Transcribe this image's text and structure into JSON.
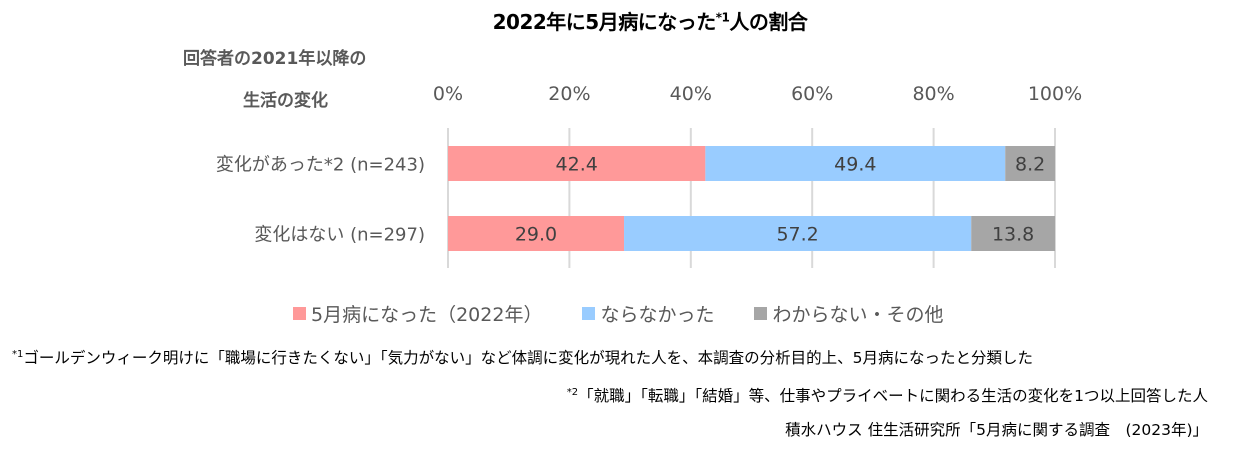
{
  "chart_data": {
    "type": "bar",
    "orientation": "horizontal",
    "stacked": true,
    "percent": true,
    "title": "2022年に5月病になった*1人の割合",
    "title_main": "2022年に5月病になった",
    "title_sup": "*1",
    "title_tail": "人の割合",
    "category_axis_title": [
      "回答者の2021年以降の",
      "生活の変化"
    ],
    "categories": [
      "変化があった*2 (n=243)",
      "変化はない (n=297)"
    ],
    "xlim": [
      0,
      100
    ],
    "xticks": [
      0,
      20,
      40,
      60,
      80,
      100
    ],
    "xtick_labels": [
      "0%",
      "20%",
      "40%",
      "60%",
      "80%",
      "100%"
    ],
    "grid": true,
    "legend_position": "bottom",
    "series": [
      {
        "name": "5月病になった（2022年）",
        "color": "#FF9999",
        "values": [
          42.4,
          29.0
        ],
        "labels": [
          "42.4",
          "29.0"
        ]
      },
      {
        "name": "ならなかった",
        "color": "#99CCFF",
        "values": [
          49.4,
          57.2
        ],
        "labels": [
          "49.4",
          "57.2"
        ]
      },
      {
        "name": "わからない・その他",
        "color": "#A6A6A6",
        "values": [
          8.2,
          13.8
        ],
        "labels": [
          "8.2",
          "13.8"
        ]
      }
    ]
  },
  "notes": {
    "note1_marker": "*1",
    "note1_text": "ゴールデンウィーク明けに「職場に行きたくない」「気力がない」など体調に変化が現れた人を、本調査の分析目的上、5月病になったと分類した",
    "note2_marker": "*2",
    "note2_text": "「就職」「転職」「結婚」等、仕事やプライベートに関わる生活の変化を1つ以上回答した人",
    "source": "積水ハウス 住生活研究所「5月病に関する調査　(2023年)」"
  }
}
